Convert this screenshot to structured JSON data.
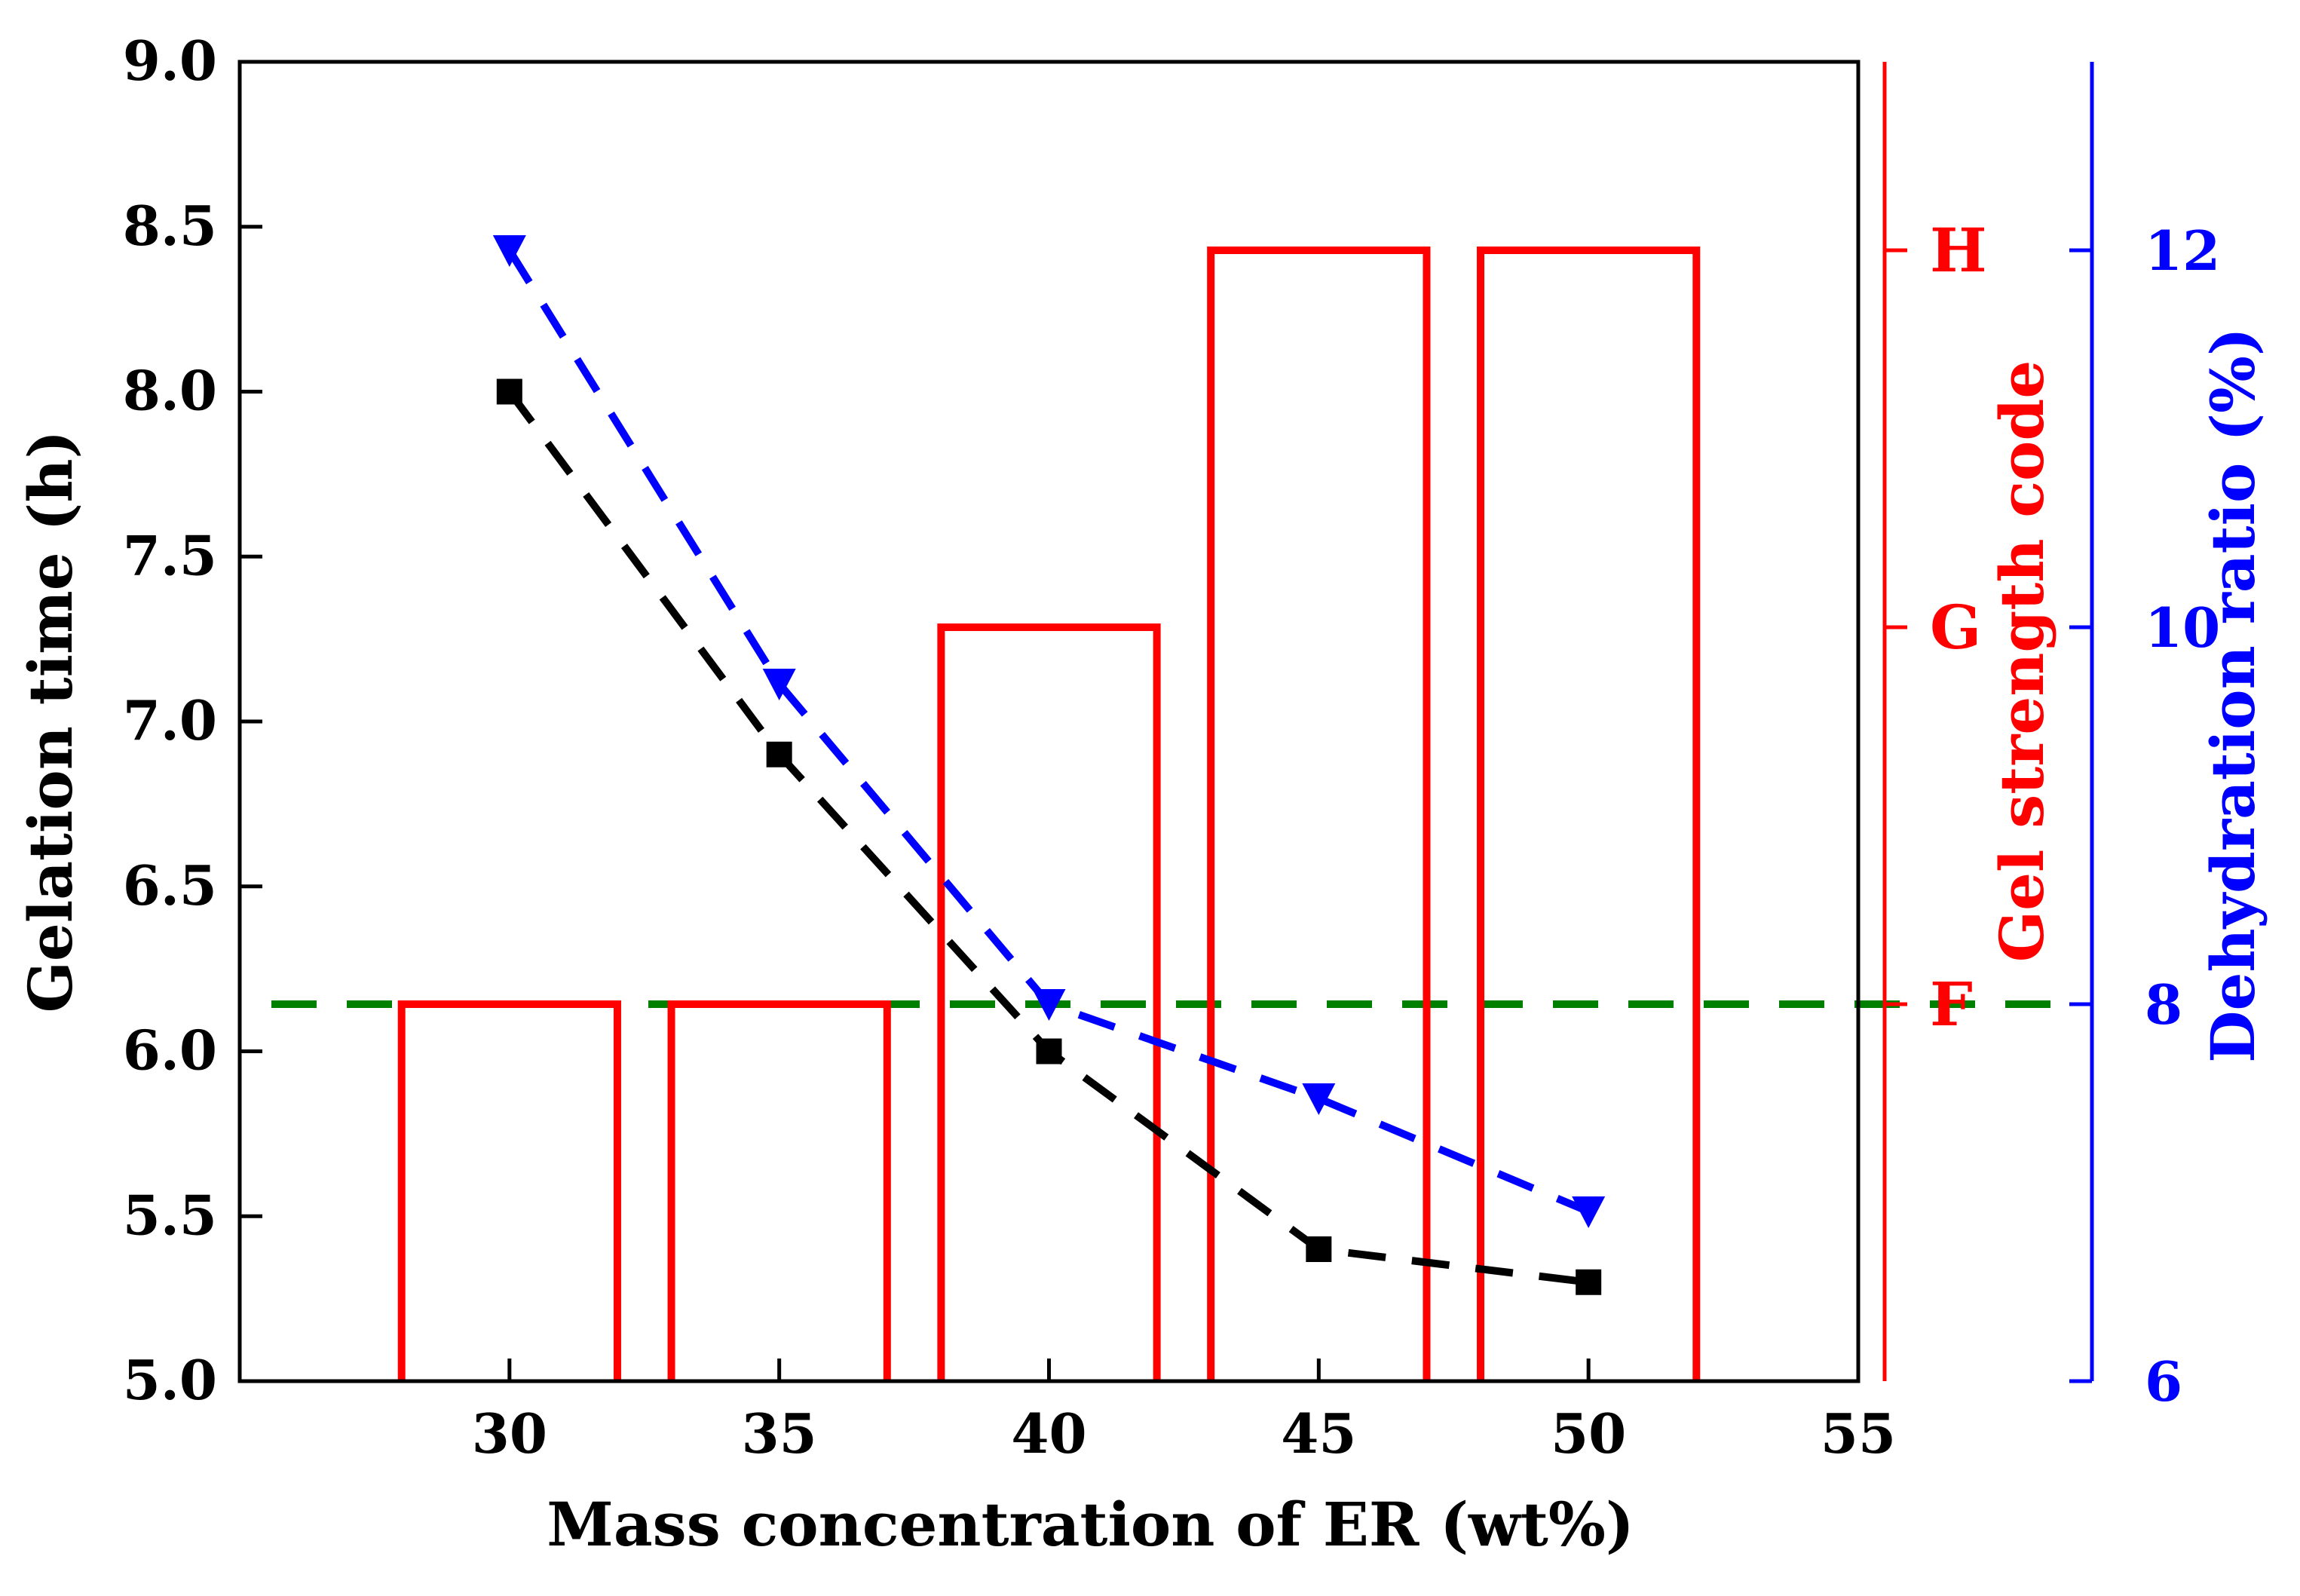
{
  "chart_data": {
    "type": "bar",
    "x": {
      "label": "Mass concentration of ER (wt%)",
      "lim": [
        25,
        55
      ],
      "ticks": [
        30,
        35,
        40,
        45,
        50,
        55
      ]
    },
    "y_left": {
      "label": "Gelation time (h)",
      "lim": [
        5.0,
        9.0
      ],
      "ticks": [
        "5.0",
        "5.5",
        "6.0",
        "6.5",
        "7.0",
        "7.5",
        "8.0",
        "8.5",
        "9.0"
      ],
      "color": "#000000"
    },
    "y_right_1": {
      "label": "Gel strength code",
      "ticks": [
        "F",
        "G",
        "H"
      ],
      "color": "#ff0000"
    },
    "y_right_2": {
      "label": "Dehydration ratio (%)",
      "lim": [
        6,
        13
      ],
      "ticks": [
        "6",
        "8",
        "10",
        "12"
      ],
      "color": "#0000ff"
    },
    "series": [
      {
        "name": "Gelation time",
        "type": "line",
        "axis": "left",
        "marker": "square",
        "style": "dashed",
        "color": "#000000",
        "x": [
          30,
          35,
          40,
          45,
          50
        ],
        "values": [
          8.0,
          6.9,
          6.0,
          5.4,
          5.3
        ]
      },
      {
        "name": "Dehydration ratio",
        "type": "line",
        "axis": "right_2",
        "marker": "triangle-down",
        "style": "dashed",
        "color": "#0000ff",
        "x": [
          30,
          35,
          40,
          45,
          50
        ],
        "values": [
          12.0,
          9.7,
          8.0,
          7.5,
          6.9
        ]
      },
      {
        "name": "Gel strength code",
        "type": "bar",
        "axis": "right_1",
        "fill": "none",
        "color": "#ff0000",
        "x": [
          30,
          35,
          40,
          45,
          50
        ],
        "values": [
          "F",
          "F",
          "G",
          "H",
          "H"
        ]
      }
    ],
    "reference_line": {
      "axis": "right_2",
      "value": 8,
      "style": "dashed",
      "color": "#008000"
    }
  }
}
